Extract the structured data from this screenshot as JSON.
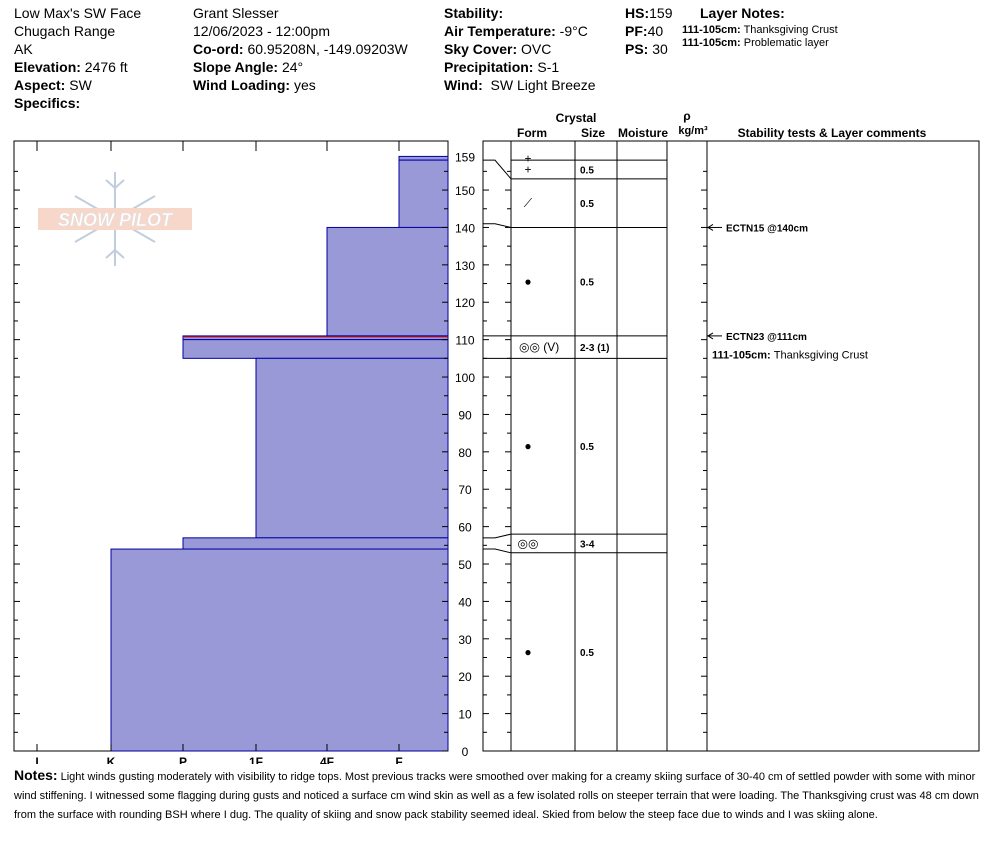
{
  "header": {
    "location": "Low Max's SW Face",
    "range": "Chugach Range",
    "state": "AK",
    "elevation_label": "Elevation:",
    "elevation": "2476 ft",
    "aspect_label": "Aspect:",
    "aspect": "SW",
    "specifics_label": "Specifics:",
    "observer": "Grant Slesser",
    "datetime": "12/06/2023 - 12:00pm",
    "coord_label": "Co-ord:",
    "coord": "60.95208N, -149.09203W",
    "slope_label": "Slope Angle:",
    "slope": "24°",
    "wind_loading_label": "Wind Loading:",
    "wind_loading": "yes",
    "stability_label": "Stability:",
    "air_temp_label": "Air Temperature:",
    "air_temp": "-9°C",
    "sky_label": "Sky Cover:",
    "sky": "OVC",
    "precip_label": "Precipitation:",
    "precip": "S-1",
    "wind_label": "Wind:",
    "wind": "SW Light Breeze",
    "hs_label": "HS:",
    "hs": "159",
    "pf_label": "PF:",
    "pf": "40",
    "ps_label": "PS:",
    "ps": "30",
    "layer_notes_label": "Layer Notes:",
    "layer_notes": [
      {
        "range": "111-105cm:",
        "text": "Thanksgiving Crust"
      },
      {
        "range": "111-105cm:",
        "text": "Problematic layer"
      }
    ]
  },
  "columns": {
    "crystal": "Crystal",
    "form": "Form",
    "size": "Size",
    "moisture": "Moisture",
    "rho": "ρ",
    "density_unit": "kg/m³",
    "comments": "Stability tests & Layer comments"
  },
  "logo_text": "SNOW PILOT",
  "notes_label": "Notes:",
  "notes": "Light winds gusting moderately with visibility to ridge tops. Most previous tracks were smoothed over making for a creamy skiing surface of 30-40 cm of settled powder with some with minor wind stiffening. I witnessed some flagging during gusts and noticed a surface cm wind skin as well as a few isolated rolls on steeper terrain that were loading. The Thanksgiving crust was 48 cm down from the surface with rounding BSH where I dug. The quality of skiing and snow pack stability seemed ideal. Skied from below the steep face due to winds and I was skiing alone.",
  "chart_data": {
    "type": "bar",
    "ylim": [
      0,
      160
    ],
    "y_ticks": [
      0,
      10,
      20,
      30,
      40,
      50,
      60,
      70,
      80,
      90,
      100,
      110,
      120,
      130,
      140,
      150,
      159
    ],
    "hardness_categories": [
      "I",
      "K",
      "P",
      "1F",
      "4F",
      "F"
    ],
    "hardness_scale_note": "hardness index position: F=1 ... I=6, plotted from right edge",
    "layers": [
      {
        "top": 159,
        "bottom": 158,
        "hardness": "F"
      },
      {
        "top": 158,
        "bottom": 140,
        "hardness": "F"
      },
      {
        "top": 140,
        "bottom": 111,
        "hardness": "4F"
      },
      {
        "top": 111,
        "bottom": 110,
        "hardness": "P"
      },
      {
        "top": 110,
        "bottom": 105,
        "hardness": "P"
      },
      {
        "top": 105,
        "bottom": 57,
        "hardness": "1F"
      },
      {
        "top": 57,
        "bottom": 54,
        "hardness": "P"
      },
      {
        "top": 54,
        "bottom": 0,
        "hardness": "K"
      }
    ],
    "grain_rows": [
      {
        "top": 159,
        "bottom": 158,
        "form": "+",
        "size": ""
      },
      {
        "top": 158,
        "bottom": 153,
        "form": "+",
        "size": "0.5"
      },
      {
        "top": 153,
        "bottom": 140,
        "form": "⟋",
        "size": "0.5"
      },
      {
        "top": 140,
        "bottom": 111,
        "form": "●",
        "size": "0.5"
      },
      {
        "top": 111,
        "bottom": 105,
        "form": "◎◎ (V)",
        "size": "2-3 (1)"
      },
      {
        "top": 105,
        "bottom": 58,
        "form": "●",
        "size": "0.5"
      },
      {
        "top": 58,
        "bottom": 53,
        "form": "◎◎",
        "size": "3-4"
      },
      {
        "top": 53,
        "bottom": 0,
        "form": "●",
        "size": "0.5"
      }
    ],
    "stability_tests": [
      {
        "depth": 140,
        "label": "ECTN15 @140cm"
      },
      {
        "depth": 111,
        "label": "ECTN23 @111cm"
      }
    ],
    "layer_comments": [
      {
        "depth": 106,
        "range": "111-105cm:",
        "text": "Thanksgiving Crust"
      }
    ],
    "colors": {
      "fill": "#9999d8",
      "stroke": "#0000a0",
      "marker": "#cc0000"
    }
  }
}
